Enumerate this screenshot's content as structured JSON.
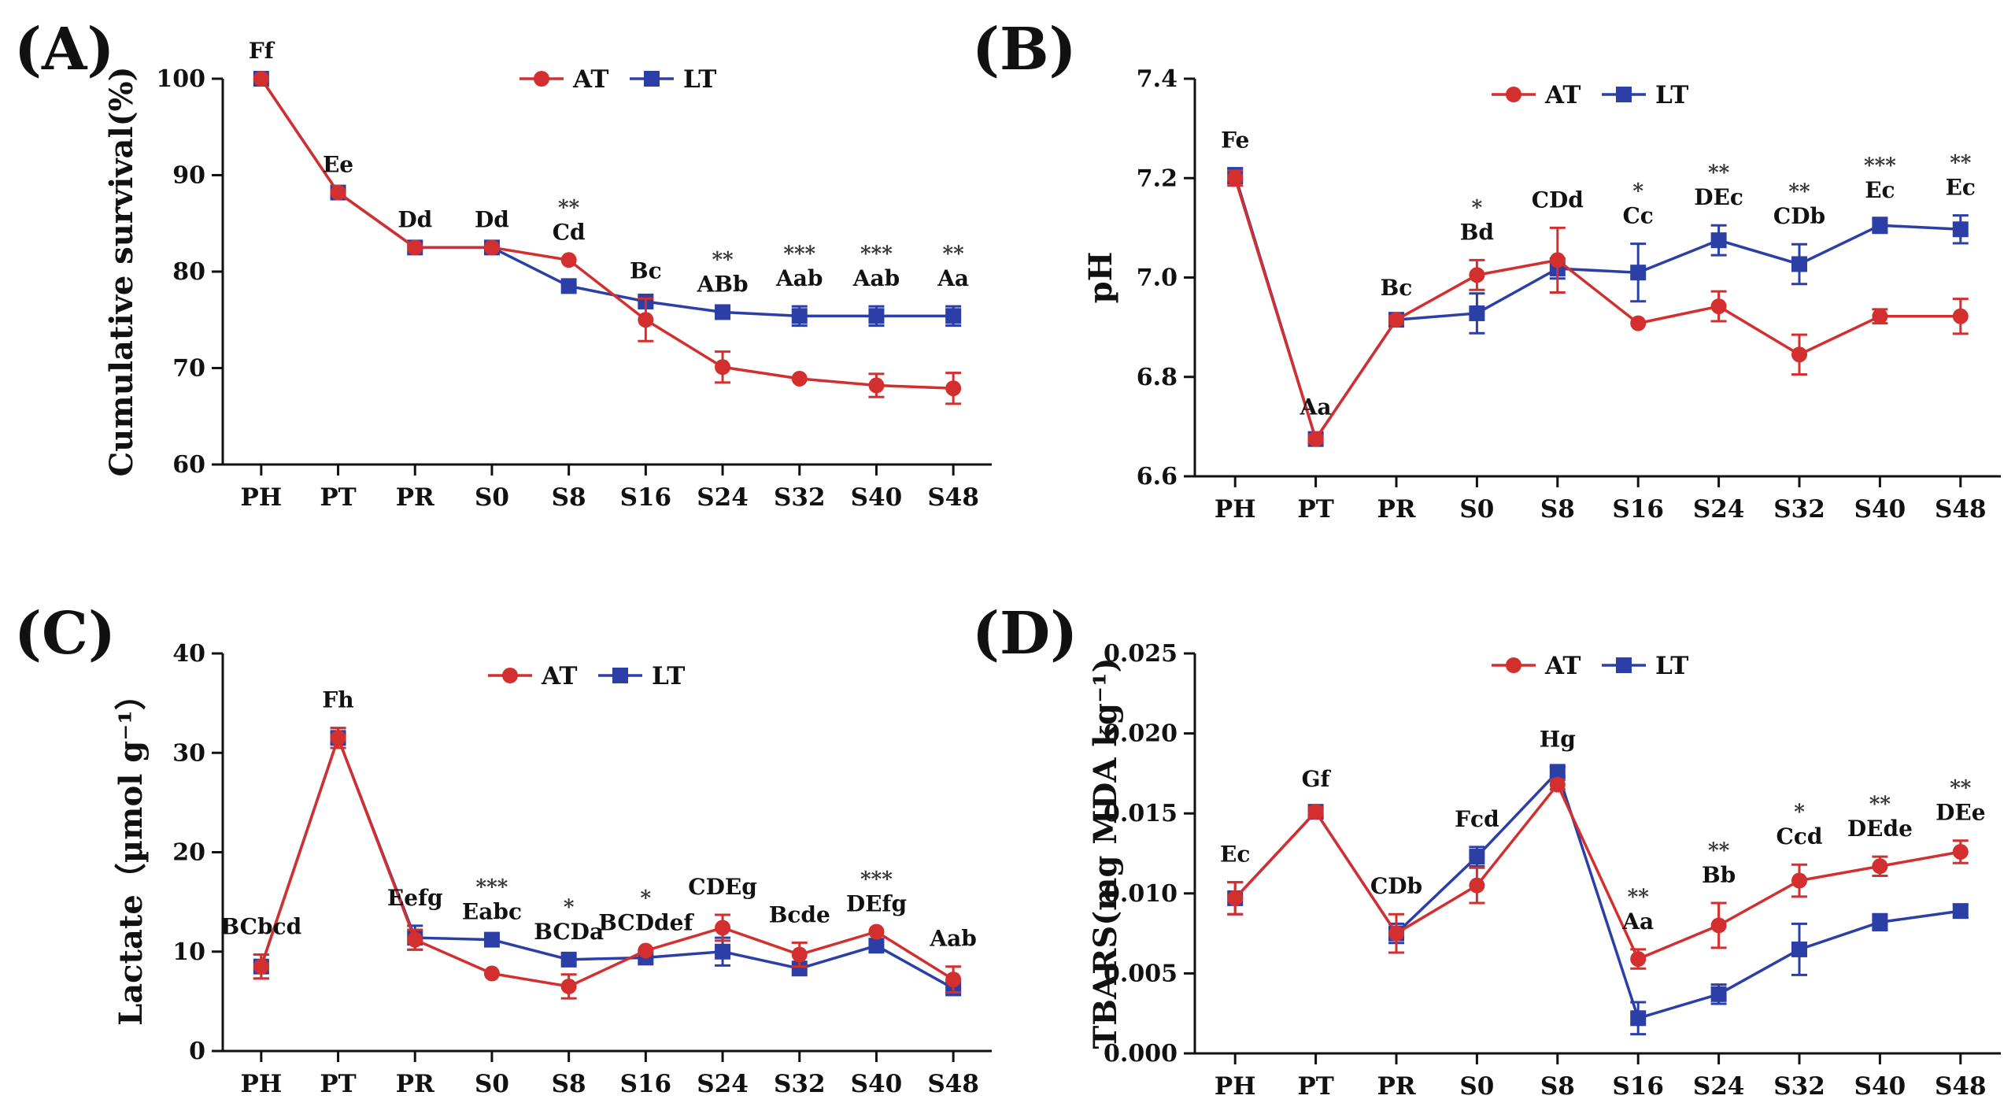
{
  "colors": {
    "AT": "#d32f2f",
    "LT": "#2b3fa6"
  },
  "chart_data": [
    {
      "type": "line",
      "tag": "(A)",
      "ylabel": "Cumulative survival(%)",
      "categories": [
        "PH",
        "PT",
        "PR",
        "S0",
        "S8",
        "S16",
        "S24",
        "S32",
        "S40",
        "S48"
      ],
      "ylim": [
        60,
        100
      ],
      "yticks": [
        60,
        70,
        80,
        90,
        100
      ],
      "series": [
        {
          "name": "AT",
          "values": [
            100,
            88.2,
            82.5,
            82.5,
            81.2,
            75.0,
            70.1,
            68.9,
            68.2,
            67.9
          ],
          "errors": [
            0,
            0,
            0,
            0,
            0,
            2.2,
            1.6,
            0,
            1.2,
            1.6
          ]
        },
        {
          "name": "LT",
          "values": [
            100,
            88.2,
            82.5,
            82.5,
            78.5,
            76.9,
            75.8,
            75.4,
            75.4,
            75.4
          ],
          "errors": [
            0,
            0,
            0,
            0,
            0,
            0,
            0,
            1,
            1,
            1
          ]
        }
      ],
      "labels": [
        "Ff",
        "Ee",
        "Dd",
        "Dd",
        "Cd",
        "Bc",
        "ABb",
        "Aab",
        "Aab",
        "Aa"
      ],
      "sig": [
        "",
        "",
        "",
        "",
        "**",
        "",
        "**",
        "***",
        "***",
        "**"
      ]
    },
    {
      "type": "line",
      "tag": "(B)",
      "ylabel": "pH",
      "categories": [
        "PH",
        "PT",
        "PR",
        "S0",
        "S8",
        "S16",
        "S24",
        "S32",
        "S40",
        "S48"
      ],
      "ylim": [
        6.6,
        7.4
      ],
      "yticks": [
        "6.6",
        "6.8",
        "7.0",
        "7.2",
        "7.4"
      ],
      "series": [
        {
          "name": "AT",
          "values": [
            7.2,
            6.675,
            6.915,
            7.005,
            7.035,
            6.908,
            6.942,
            6.845,
            6.922,
            6.922
          ],
          "errors": [
            0.015,
            0.008,
            0.008,
            0.03,
            0.065,
            0,
            0.03,
            0.04,
            0.014,
            0.035
          ]
        },
        {
          "name": "LT",
          "values": [
            7.205,
            6.675,
            6.915,
            6.928,
            7.018,
            7.01,
            7.075,
            7.027,
            7.105,
            7.097
          ],
          "errors": [
            0.015,
            0.008,
            0.008,
            0.04,
            0.02,
            0.058,
            0.03,
            0.04,
            0.015,
            0.028
          ]
        }
      ],
      "labels": [
        "Fe",
        "Aa",
        "Bc",
        "Bd",
        "CDd",
        "Cc",
        "DEc",
        "CDb",
        "Ec",
        "Ec"
      ],
      "sig": [
        "",
        "",
        "",
        "*",
        "",
        "*",
        "**",
        "**",
        "***",
        "**"
      ]
    },
    {
      "type": "line",
      "tag": "(C)",
      "ylabel": "Lactate（µmol g⁻¹）",
      "categories": [
        "PH",
        "PT",
        "PR",
        "S0",
        "S8",
        "S16",
        "S24",
        "S32",
        "S40",
        "S48"
      ],
      "ylim": [
        0,
        40
      ],
      "yticks": [
        0,
        10,
        20,
        30,
        40
      ],
      "series": [
        {
          "name": "AT",
          "values": [
            8.5,
            31.5,
            11.2,
            7.8,
            6.5,
            10.1,
            12.4,
            9.7,
            12.0,
            7.2
          ],
          "errors": [
            1.2,
            1,
            1,
            0,
            1.2,
            0,
            1.3,
            1.2,
            0,
            1.3
          ]
        },
        {
          "name": "LT",
          "values": [
            8.5,
            31.5,
            11.4,
            11.2,
            9.2,
            9.4,
            10.0,
            8.3,
            10.6,
            6.3
          ],
          "errors": [
            1.2,
            1,
            1.2,
            0,
            0,
            0,
            1.4,
            0,
            0,
            0
          ]
        }
      ],
      "labels": [
        "BCbcd",
        "Fh",
        "Eefg",
        "Eabc",
        "BCDa",
        "BCDdef",
        "CDEg",
        "Bcde",
        "DEfg",
        "Aab"
      ],
      "sig": [
        "",
        "",
        "",
        "***",
        "*",
        "*",
        "",
        "",
        "***",
        ""
      ]
    },
    {
      "type": "line",
      "tag": "(D)",
      "ylabel": "TBARS(mg MDA kg⁻¹)",
      "categories": [
        "PH",
        "PT",
        "PR",
        "S0",
        "S8",
        "S16",
        "S24",
        "S32",
        "S40",
        "S48"
      ],
      "ylim": [
        0,
        0.025
      ],
      "yticks": [
        "0.000",
        "0.005",
        "0.010",
        "0.015",
        "0.020",
        "0.025"
      ],
      "series": [
        {
          "name": "AT",
          "values": [
            0.0097,
            0.0151,
            0.0075,
            0.0105,
            0.0168,
            0.0059,
            0.008,
            0.0108,
            0.0117,
            0.0126
          ],
          "errors": [
            0.001,
            0.0003,
            0.0012,
            0.0011,
            0.0003,
            0.0006,
            0.0014,
            0.001,
            0.0006,
            0.0007
          ]
        },
        {
          "name": "LT",
          "values": [
            0.0097,
            0.0151,
            0.0075,
            0.0123,
            0.0176,
            0.0022,
            0.0037,
            0.0065,
            0.0082,
            0.0089
          ],
          "errors": [
            0.001,
            0.0003,
            0.0006,
            0.0006,
            0.0003,
            0.001,
            0.0006,
            0.0016,
            0.0005,
            0.0004
          ]
        }
      ],
      "labels": [
        "Ec",
        "Gf",
        "CDb",
        "Fcd",
        "Hg",
        "Aa",
        "Bb",
        "Ccd",
        "DEde",
        "DEe"
      ],
      "sig": [
        "",
        "",
        "",
        "",
        "",
        "**",
        "**",
        "*",
        "**",
        "**"
      ]
    }
  ]
}
